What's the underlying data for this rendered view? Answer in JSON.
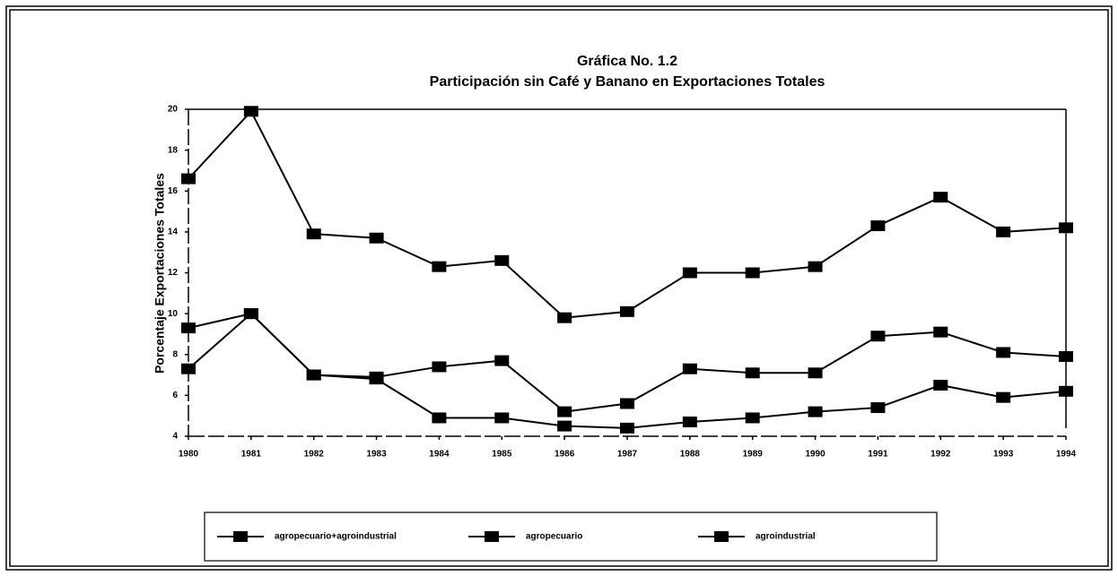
{
  "chart_data": {
    "type": "line",
    "title": "Gráfica No. 1.2",
    "subtitle": "Participación sin Café y Banano en Exportaciones Totales",
    "y_label": "Porcentaje Exportaciones Totales",
    "x": [
      1980,
      1981,
      1982,
      1983,
      1984,
      1985,
      1986,
      1987,
      1988,
      1989,
      1990,
      1991,
      1992,
      1993,
      1994
    ],
    "xlim": [
      1980,
      1994
    ],
    "xticks": [
      1980,
      1981,
      1982,
      1983,
      1984,
      1985,
      1986,
      1987,
      1988,
      1989,
      1990,
      1991,
      1992,
      1993,
      1994
    ],
    "ylim": [
      4,
      20
    ],
    "yticks": [
      4,
      6,
      8,
      10,
      12,
      14,
      16,
      18,
      20
    ],
    "series": [
      {
        "name": "agropecuario+agroindustrial",
        "color": "#000000",
        "values": [
          16.6,
          19.9,
          13.9,
          13.7,
          12.3,
          12.6,
          9.8,
          10.1,
          12.0,
          12.0,
          12.3,
          14.3,
          15.7,
          14.0,
          14.2
        ]
      },
      {
        "name": "agropecuario",
        "color": "#000000",
        "values": [
          9.3,
          10.0,
          7.0,
          6.9,
          7.4,
          7.7,
          5.2,
          5.6,
          7.3,
          7.1,
          7.1,
          8.9,
          9.1,
          8.1,
          7.9
        ]
      },
      {
        "name": "agroindustrial",
        "color": "#000000",
        "values": [
          7.3,
          10.0,
          7.0,
          6.8,
          4.9,
          4.9,
          4.5,
          4.4,
          4.7,
          4.9,
          5.2,
          5.4,
          6.5,
          5.9,
          6.2
        ]
      }
    ]
  }
}
